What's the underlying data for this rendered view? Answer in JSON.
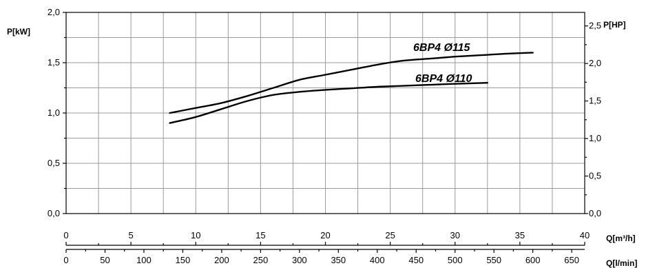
{
  "chart_data": {
    "type": "line",
    "title": "",
    "grid": true,
    "axes": {
      "y_left": {
        "label": "P[kW]",
        "min": 0,
        "max": 2.0,
        "ticks": [
          "0,0",
          "0,5",
          "1,0",
          "1,5",
          "2,0"
        ],
        "tick_values": [
          0,
          0.5,
          1.0,
          1.5,
          2.0
        ]
      },
      "y_right": {
        "label": "P[HP]",
        "min": 0,
        "max": 2.68,
        "ticks": [
          "0,0",
          "0,5",
          "1,0",
          "1,5",
          "2,0",
          "2,5"
        ],
        "tick_values": [
          0,
          0.5,
          1.0,
          1.5,
          2.0,
          2.5
        ]
      },
      "x_primary": {
        "label": "Q[m³/h]",
        "min": 0,
        "max": 40,
        "ticks": [
          "0",
          "5",
          "10",
          "15",
          "20",
          "25",
          "30",
          "35",
          "40"
        ],
        "tick_values": [
          0,
          5,
          10,
          15,
          20,
          25,
          30,
          35,
          40
        ]
      },
      "x_secondary": {
        "label": "Q[l/min]",
        "min": 0,
        "max": 666.7,
        "ticks": [
          "0",
          "50",
          "100",
          "150",
          "200",
          "250",
          "300",
          "350",
          "400",
          "450",
          "500",
          "550",
          "600",
          "650"
        ],
        "tick_values": [
          0,
          50,
          100,
          150,
          200,
          250,
          300,
          350,
          400,
          450,
          500,
          550,
          600,
          650
        ]
      }
    },
    "series": [
      {
        "name": "6BP4 Ø115",
        "x": [
          8,
          10,
          12,
          14,
          16,
          18,
          20,
          22,
          24,
          26,
          28,
          30,
          32,
          34,
          36
        ],
        "y": [
          1.0,
          1.05,
          1.1,
          1.17,
          1.25,
          1.33,
          1.38,
          1.43,
          1.48,
          1.52,
          1.54,
          1.56,
          1.575,
          1.59,
          1.6
        ]
      },
      {
        "name": "6BP4 Ø110",
        "x": [
          8,
          10,
          12,
          14,
          16,
          18,
          20,
          22,
          24,
          26,
          28,
          30,
          32.5
        ],
        "y": [
          0.9,
          0.96,
          1.04,
          1.12,
          1.18,
          1.21,
          1.23,
          1.245,
          1.26,
          1.27,
          1.28,
          1.29,
          1.3
        ]
      }
    ]
  }
}
